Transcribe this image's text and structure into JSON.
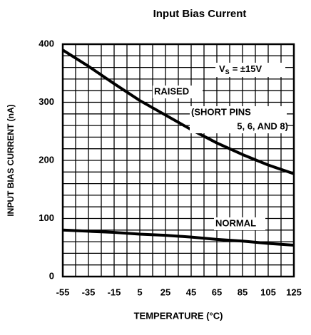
{
  "chart_data": {
    "type": "line",
    "title": "Input Bias Current",
    "xlabel": "TEMPERATURE (°C)",
    "ylabel": "INPUT BIAS CURRENT (nA)",
    "x": [
      -55,
      -35,
      -15,
      5,
      25,
      45,
      65,
      85,
      105,
      125
    ],
    "series": [
      {
        "name": "RAISED",
        "color": "#000000",
        "values": [
          390,
          362,
          332,
          303,
          278,
          253,
          230,
          210,
          192,
          177
        ]
      },
      {
        "name": "NORMAL",
        "color": "#000000",
        "values": [
          80,
          78,
          76,
          73,
          71,
          68,
          64,
          61,
          57,
          54
        ]
      }
    ],
    "annotations": {
      "supply_symbol": "V",
      "supply_subscript": "S",
      "supply_value": "= ±15V",
      "note_line1": "(SHORT PINS",
      "note_line2": "5, 6, AND 8)"
    },
    "xlim": [
      -55,
      125
    ],
    "xticks": [
      -55,
      -35,
      -15,
      5,
      25,
      45,
      65,
      85,
      105,
      125
    ],
    "ylim": [
      0,
      400
    ],
    "yticks": [
      0,
      100,
      200,
      300,
      400
    ],
    "xgrid": [
      -55,
      -45,
      -35,
      -25,
      -15,
      -5,
      5,
      15,
      25,
      35,
      45,
      55,
      65,
      75,
      85,
      95,
      105,
      115,
      125
    ],
    "ygrid": [
      0,
      20,
      40,
      60,
      80,
      100,
      120,
      140,
      160,
      180,
      200,
      220,
      240,
      260,
      280,
      300,
      320,
      340,
      360,
      380,
      400
    ],
    "grid": true
  }
}
